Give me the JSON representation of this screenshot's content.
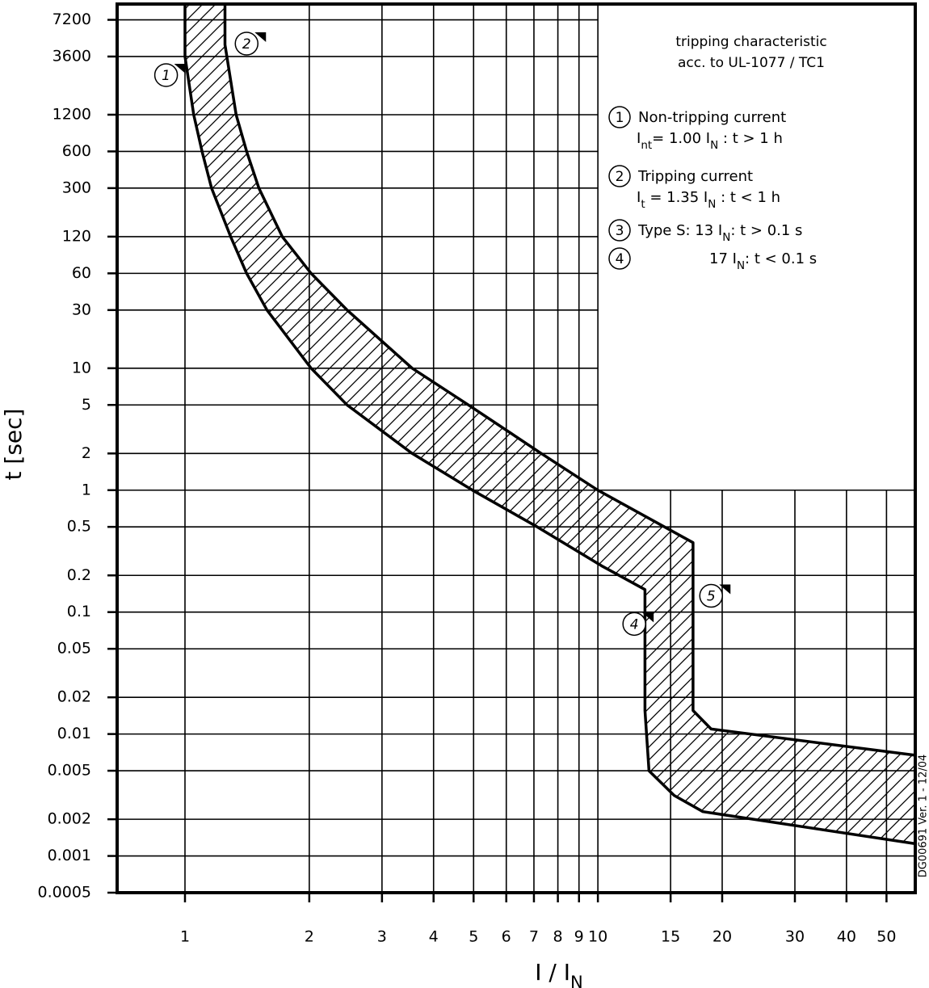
{
  "chart_data": {
    "type": "band",
    "xlog": true,
    "ylog": true,
    "xlim": [
      0.685,
      58.7
    ],
    "ylim": [
      0.0005,
      9700
    ],
    "xticks": [
      1,
      2,
      3,
      4,
      5,
      6,
      7,
      8,
      9,
      10,
      15,
      20,
      30,
      40,
      50
    ],
    "yticks": [
      7200,
      3600,
      1200,
      600,
      300,
      120,
      60,
      30,
      10,
      5,
      2,
      1,
      0.5,
      0.2,
      0.1,
      0.05,
      0.02,
      0.01,
      0.005,
      0.002,
      0.001,
      0.0005
    ],
    "grid": true,
    "grid_blank_region": {
      "xlim": [
        10,
        58.7
      ],
      "ylim": [
        1,
        9700
      ]
    },
    "x_label": [
      {
        "text": "I / I"
      },
      {
        "sub": "N"
      }
    ],
    "y_label": "t [sec]",
    "side_note": "DG00691  Ver. 1 - 12/04",
    "color": "#000000",
    "series": [
      {
        "x": [
          1.0,
          1.0,
          1.05,
          1.1,
          1.16,
          1.29,
          1.41,
          1.58,
          2.02,
          2.47,
          3.55,
          4.97,
          7.13,
          10.2,
          13.0,
          13.0,
          13.3,
          15.3,
          17.96,
          58.7
        ],
        "values": [
          9700,
          3600,
          1200,
          600,
          300,
          120,
          60,
          30,
          10,
          5,
          2,
          1,
          0.5,
          0.24,
          0.153,
          0.0156,
          0.005,
          0.00314,
          0.00231,
          0.00126
        ]
      },
      {
        "x": [
          1.25,
          1.25,
          1.33,
          1.41,
          1.51,
          1.72,
          2.02,
          2.47,
          3.55,
          4.86,
          7.29,
          10.0,
          17.0,
          17.0,
          18.8,
          58.7
        ],
        "values": [
          9700,
          4500,
          1200,
          600,
          300,
          120,
          60,
          30,
          10,
          5,
          2,
          1,
          0.371,
          0.0156,
          0.011,
          0.0067
        ]
      }
    ],
    "annotations": [
      {
        "label": "1",
        "x": 0.9,
        "y": 2535
      },
      {
        "label": "2",
        "x": 1.41,
        "y": 4590
      },
      {
        "label": "4",
        "x": 12.25,
        "y": 0.08
      },
      {
        "label": "5",
        "x": 18.8,
        "y": 0.136
      }
    ],
    "legend_title": [
      "tripping characteristic",
      "acc. to UL-1077 / TC1"
    ],
    "legend_items": [
      {
        "number": "1",
        "lines": [
          [
            {
              "text": "Non-tripping current"
            }
          ],
          [
            {
              "text": "I"
            },
            {
              "sub": "nt"
            },
            {
              "text": "= 1.00 I"
            },
            {
              "sub": "N"
            },
            {
              "text": " : t > 1 h"
            }
          ]
        ]
      },
      {
        "number": "2",
        "lines": [
          [
            {
              "text": "Tripping current"
            }
          ],
          [
            {
              "text": "I"
            },
            {
              "sub": "t"
            },
            {
              "text": " = 1.35 I"
            },
            {
              "sub": "N"
            },
            {
              "text": " : t < 1 h"
            }
          ]
        ]
      },
      {
        "number": "3",
        "lines": [
          [
            {
              "text": "Type S:  13 I"
            },
            {
              "sub": "N"
            },
            {
              "text": ": t > 0.1 s"
            }
          ]
        ]
      },
      {
        "number": "4",
        "lines": [
          [
            {
              "text": "17 I"
            },
            {
              "sub": "N"
            },
            {
              "text": ": t < 0.1 s"
            }
          ]
        ]
      }
    ]
  }
}
